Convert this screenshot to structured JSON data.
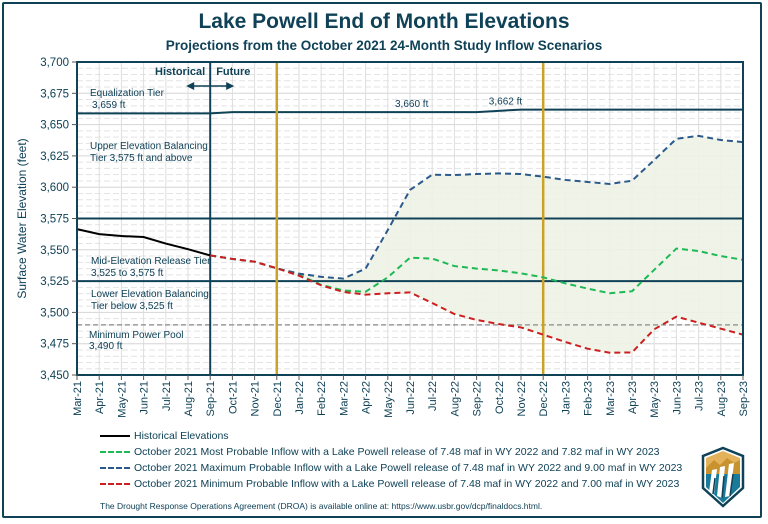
{
  "title": "Lake Powell End of Month Elevations",
  "subtitle": "Projections from the October 2021 24-Month Study Inflow Scenarios",
  "footnote": "The Drought Response Operations Agreement (DROA) is available online at: https://www.usbr.gov/dcp/finaldocs.html.",
  "logo": "reclamation-shield-logo",
  "colors": {
    "frame": "#0f4157",
    "historical": "#000000",
    "most": "#1db954",
    "max": "#2b5a8a",
    "min": "#cc1f1f",
    "tier_line": "#0f4157",
    "dec_marker": "#c9a227",
    "power_pool": "#9a9a9a",
    "band_fill": "#eef3e6"
  },
  "chart_data": {
    "type": "line",
    "title": "Lake Powell End of Month Elevations",
    "subtitle": "Projections from the October 2021 24-Month Study Inflow Scenarios",
    "xlabel": "",
    "ylabel": "Surface Water Elevation (feet)",
    "ylim": [
      3450,
      3700
    ],
    "yticks": [
      3450,
      3475,
      3500,
      3525,
      3550,
      3575,
      3600,
      3625,
      3650,
      3675,
      3700
    ],
    "ytick_labels": [
      "3,450",
      "3,475",
      "3,500",
      "3,525",
      "3,550",
      "3,575",
      "3,600",
      "3,625",
      "3,650",
      "3,675",
      "3,700"
    ],
    "grid": true,
    "categories": [
      "Mar-21",
      "Apr-21",
      "May-21",
      "Jun-21",
      "Jul-21",
      "Aug-21",
      "Sep-21",
      "Oct-21",
      "Nov-21",
      "Dec-21",
      "Jan-22",
      "Feb-22",
      "Mar-22",
      "Apr-22",
      "May-22",
      "Jun-22",
      "Jul-22",
      "Aug-22",
      "Sep-22",
      "Oct-22",
      "Nov-22",
      "Dec-22",
      "Jan-23",
      "Feb-23",
      "Mar-23",
      "Apr-23",
      "May-23",
      "Jun-23",
      "Jul-23",
      "Aug-23",
      "Sep-23"
    ],
    "series": [
      {
        "name": "Historical Elevations",
        "style": "solid",
        "start": "Mar-21",
        "values": [
          3566.5,
          3562.5,
          3561.0,
          3560.2,
          3555.0,
          3550.5,
          3545.5
        ]
      },
      {
        "name": "October 2021 Most Probable Inflow with a Lake Powell release of 7.48 maf in WY 2022 and 7.82 maf in WY 2023",
        "style": "dashed",
        "start": "Sep-21",
        "values": [
          3545.5,
          3542.7,
          3540.5,
          3535.2,
          3530.0,
          3522.0,
          3517.5,
          3516.5,
          3528.0,
          3543.7,
          3543.0,
          3537.0,
          3535.0,
          3533.5,
          3531.2,
          3528.0,
          3523.2,
          3519.0,
          3515.3,
          3516.9,
          3534.0,
          3551.0,
          3549.0,
          3545.0,
          3542.0
        ]
      },
      {
        "name": "October 2021 Maximum Probable Inflow with a Lake Powell release of 7.48 maf in WY 2022 and 9.00 maf in WY 2023",
        "style": "dashed",
        "start": "Sep-21",
        "values": [
          3545.5,
          3542.7,
          3540.5,
          3535.2,
          3531.0,
          3528.4,
          3527.0,
          3535.0,
          3565.8,
          3597.8,
          3610.0,
          3609.7,
          3610.5,
          3611.0,
          3610.5,
          3608.4,
          3605.8,
          3604.2,
          3602.6,
          3605.2,
          3621.7,
          3638.7,
          3641.0,
          3637.7,
          3636.0
        ]
      },
      {
        "name": "October 2021 Minimum Probable Inflow with a Lake Powell release of 7.48 maf in WY 2022 and 7.00 maf in WY 2023",
        "style": "dashed",
        "start": "Sep-21",
        "values": [
          3545.5,
          3542.7,
          3540.5,
          3535.2,
          3529.3,
          3521.6,
          3516.3,
          3514.2,
          3515.3,
          3516.0,
          3507.5,
          3498.7,
          3494.0,
          3490.7,
          3488.0,
          3482.2,
          3476.4,
          3471.0,
          3467.8,
          3468.0,
          3486.5,
          3496.6,
          3491.8,
          3487.0,
          3482.2
        ]
      }
    ],
    "equalization_line": {
      "categories_start": "Mar-21",
      "values": [
        3659,
        3659,
        3659,
        3659,
        3659,
        3659,
        3659,
        3660,
        3660,
        3660,
        3660,
        3660,
        3660,
        3660,
        3660,
        3660,
        3660,
        3660,
        3660,
        3661,
        3662,
        3662,
        3662,
        3662,
        3662,
        3662,
        3662,
        3662,
        3662,
        3662,
        3662
      ]
    },
    "reference_lines": [
      {
        "value": 3575,
        "style": "solid",
        "label": "Upper Elevation Balancing threshold"
      },
      {
        "value": 3525,
        "style": "solid",
        "label": "Lower Elevation Balancing threshold"
      },
      {
        "value": 3490,
        "style": "dashed",
        "label": "Minimum Power Pool"
      }
    ],
    "vertical_markers": [
      {
        "at": "Sep-21",
        "style": "solid",
        "label": "Historical / Future divider"
      },
      {
        "at": "Dec-21",
        "style": "solid-gold"
      },
      {
        "at": "Dec-22",
        "style": "solid-gold"
      }
    ],
    "annotations": {
      "historical": "Historical",
      "future": "Future",
      "equalization_tier": [
        "Equalization Tier",
        "3,659 ft"
      ],
      "eq_3660": "3,660 ft",
      "eq_3662": "3,662 ft",
      "upper_tier": [
        "Upper Elevation Balancing",
        "Tier 3,575 ft and above"
      ],
      "mid_tier": [
        "Mid-Elevation Release Tier",
        "3,525 to 3,575 ft"
      ],
      "lower_tier": [
        "Lower Elevation Balancing",
        "Tier below 3,525 ft"
      ],
      "power_pool": [
        "Minimum Power Pool",
        "3,490 ft"
      ]
    },
    "legend_placement": "bottom"
  },
  "legend": [
    {
      "label": "Historical Elevations",
      "key": "historical",
      "style": "solid"
    },
    {
      "label": "October 2021 Most Probable Inflow with a Lake Powell release of 7.48 maf in WY 2022 and 7.82 maf in WY 2023",
      "key": "most",
      "style": "dashed"
    },
    {
      "label": "October 2021 Maximum Probable Inflow with a Lake Powell release of 7.48 maf in WY 2022 and 9.00 maf in WY 2023",
      "key": "max",
      "style": "dashed"
    },
    {
      "label": "October 2021 Minimum Probable Inflow with a Lake Powell release of 7.48 maf in WY 2022 and 7.00 maf in WY 2023",
      "key": "min",
      "style": "dashed"
    }
  ]
}
